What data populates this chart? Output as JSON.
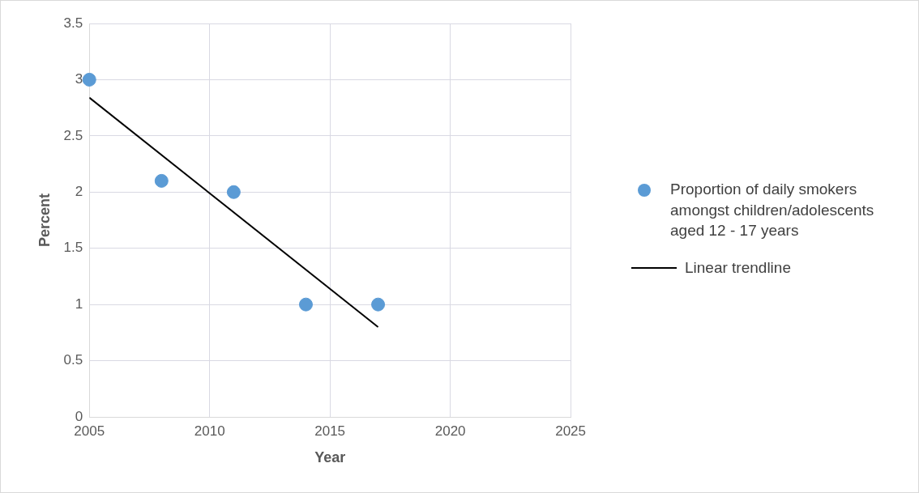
{
  "chart_data": {
    "type": "scatter",
    "xlabel": "Year",
    "ylabel": "Percent",
    "xlim": [
      2005,
      2025
    ],
    "xticks": [
      2005,
      2010,
      2015,
      2020,
      2025
    ],
    "ylim": [
      0,
      3.5
    ],
    "yticks": [
      0,
      0.5,
      1,
      1.5,
      2,
      2.5,
      3,
      3.5
    ],
    "series": [
      {
        "name": "Proportion of daily smokers amongst children/adolescents aged 12 - 17 years",
        "color": "#5b9bd5",
        "x": [
          2005,
          2008,
          2011,
          2014,
          2017
        ],
        "values": [
          3,
          2.1,
          2,
          1,
          1
        ],
        "marker": "circle"
      },
      {
        "name": "Linear trendline",
        "type": "line",
        "color": "#000000",
        "x": [
          2005,
          2017
        ],
        "values": [
          2.84,
          0.8
        ]
      }
    ],
    "grid": true,
    "legend": "right"
  }
}
